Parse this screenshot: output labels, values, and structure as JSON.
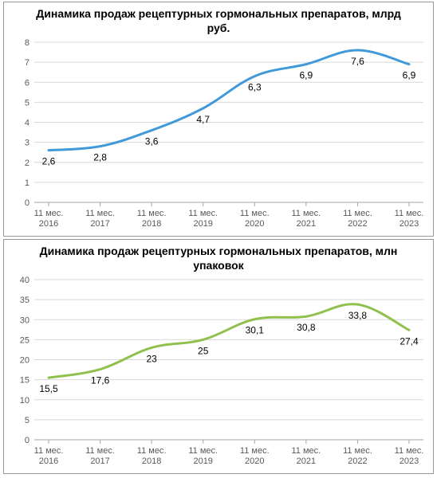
{
  "top_chart": {
    "type": "line",
    "title": "Динамика продаж рецептурных гормональных препаратов, млрд руб.",
    "title_fontsize": 14,
    "title_weight": "bold",
    "categories": [
      "11 мес. 2016",
      "11 мес. 2017",
      "11 мес. 2018",
      "11 мес. 2019",
      "11 мес. 2020",
      "11 мес. 2021",
      "11 мес. 2022",
      "11 мес. 2023"
    ],
    "values": [
      2.6,
      2.8,
      3.6,
      4.7,
      6.3,
      6.9,
      7.6,
      6.9
    ],
    "value_labels": [
      "2,6",
      "2,8",
      "3,6",
      "4,7",
      "6,3",
      "6,9",
      "7,6",
      "6,9"
    ],
    "line_color": "#4099d8",
    "line_width": 3,
    "ylim": [
      0,
      8
    ],
    "ytick_step": 1,
    "yticks": [
      0,
      1,
      2,
      3,
      4,
      5,
      6,
      7,
      8
    ],
    "ytick_labels": [
      "0",
      "1",
      "2",
      "3",
      "4",
      "5",
      "6",
      "7",
      "8"
    ],
    "grid_color": "#d9d9d9",
    "axis_color": "#a6a6a6",
    "tick_fontsize": 11,
    "label_fontsize": 12,
    "background_color": "#ffffff",
    "label_offset_y": 18
  },
  "bottom_chart": {
    "type": "line",
    "title": "Динамика продаж рецептурных гормональных препаратов, млн упаковок",
    "title_fontsize": 14,
    "title_weight": "bold",
    "categories": [
      "11 мес. 2016",
      "11 мес. 2017",
      "11 мес. 2018",
      "11 мес. 2019",
      "11 мес. 2020",
      "11 мес. 2021",
      "11 мес. 2022",
      "11 мес. 2023"
    ],
    "values": [
      15.5,
      17.6,
      23,
      25,
      30.1,
      30.8,
      33.8,
      27.4
    ],
    "value_labels": [
      "15,5",
      "17,6",
      "23",
      "25",
      "30,1",
      "30,8",
      "33,8",
      "27,4"
    ],
    "line_color": "#90c14f",
    "line_width": 3,
    "ylim": [
      0,
      40
    ],
    "ytick_step": 5,
    "yticks": [
      0,
      5,
      10,
      15,
      20,
      25,
      30,
      35,
      40
    ],
    "ytick_labels": [
      "0",
      "5",
      "10",
      "15",
      "20",
      "25",
      "30",
      "35",
      "40"
    ],
    "grid_color": "#d9d9d9",
    "axis_color": "#a6a6a6",
    "tick_fontsize": 11,
    "label_fontsize": 12,
    "background_color": "#ffffff",
    "label_offset_y": 18
  }
}
